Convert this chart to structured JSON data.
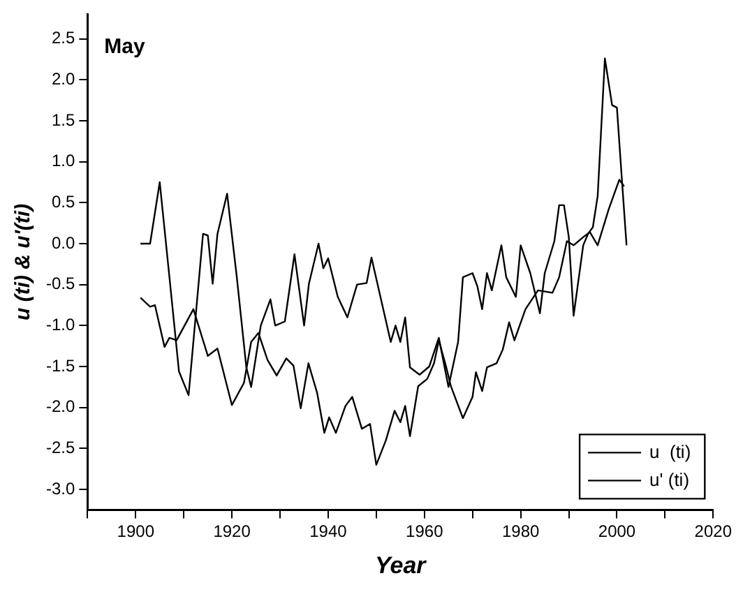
{
  "chart_data": {
    "type": "line",
    "title": "May",
    "xlabel": "Year",
    "ylabel": "u (ti) & u'(ti)",
    "xlim": [
      1890,
      2020
    ],
    "xticks": [
      {
        "value": 1890,
        "label": null
      },
      1900,
      {
        "value": 1910,
        "label": null
      },
      1920,
      {
        "value": 1930,
        "label": null
      },
      1940,
      {
        "value": 1950,
        "label": null
      },
      1960,
      {
        "value": 1970,
        "label": null
      },
      1980,
      {
        "value": 1990,
        "label": null
      },
      2000,
      {
        "value": 2010,
        "label": null
      },
      2020
    ],
    "ylim": [
      -3.25,
      2.8
    ],
    "yticks": [
      {
        "value": -3,
        "label": "-3.0"
      },
      {
        "value": -2.5,
        "label": "-2.5"
      },
      {
        "value": -2,
        "label": "-2.0"
      },
      {
        "value": -1.5,
        "label": "-1.5"
      },
      {
        "value": -1,
        "label": "-1.0"
      },
      {
        "value": -0.5,
        "label": "-0.5"
      },
      {
        "value": 0,
        "label": "0.0"
      },
      {
        "value": 0.5,
        "label": "0.5"
      },
      {
        "value": 1,
        "label": "1.0"
      },
      {
        "value": 1.5,
        "label": "1.5"
      },
      {
        "value": 2,
        "label": "2.0"
      },
      {
        "value": 2.5,
        "label": "2.5"
      }
    ],
    "grid": false,
    "legend": "bottom right",
    "marker": "none",
    "line_style": "solid",
    "series": [
      {
        "name": "u  (ti)",
        "color": "#000000",
        "x": [
          1901,
          1903,
          1905,
          1907,
          1909,
          1911,
          1914,
          1915,
          1916,
          1917,
          1919,
          1921,
          1923,
          1924,
          1926,
          1928,
          1929,
          1931,
          1933,
          1935,
          1936,
          1938,
          1939,
          1940,
          1942,
          1944,
          1946,
          1948,
          1949,
          1953,
          1954,
          1955,
          1956,
          1957,
          1959,
          1961,
          1963,
          1965,
          1967,
          1968,
          1970,
          1971,
          1972,
          1973,
          1974,
          1976,
          1977,
          1979,
          1980,
          1982,
          1984,
          1985,
          1987,
          1988,
          1989,
          1990,
          1991,
          1993,
          1994,
          1995,
          1996,
          1997.5,
          1999,
          2000,
          2001,
          2002
        ],
        "values": [
          0.0,
          0.0,
          0.75,
          -0.4,
          -1.56,
          -1.85,
          0.12,
          0.1,
          -0.49,
          0.12,
          0.61,
          -0.4,
          -1.51,
          -1.75,
          -1.0,
          -0.68,
          -1.0,
          -0.95,
          -0.13,
          -1.0,
          -0.49,
          0.0,
          -0.3,
          -0.18,
          -0.65,
          -0.9,
          -0.5,
          -0.48,
          -0.17,
          -1.2,
          -1.0,
          -1.2,
          -0.9,
          -1.51,
          -1.6,
          -1.5,
          -1.15,
          -1.75,
          -1.2,
          -0.41,
          -0.36,
          -0.52,
          -0.8,
          -0.36,
          -0.57,
          -0.02,
          -0.41,
          -0.65,
          -0.02,
          -0.36,
          -0.85,
          -0.36,
          0.03,
          0.47,
          0.47,
          0.08,
          -0.88,
          -0.02,
          0.12,
          0.2,
          0.58,
          2.26,
          1.69,
          1.66,
          0.81,
          -0.02
        ]
      },
      {
        "name": "u' (ti)",
        "color": "#000000",
        "x": [
          1901,
          1903,
          1904,
          1906,
          1907,
          1908.5,
          1912,
          1915,
          1917,
          1920,
          1922.5,
          1924,
          1925.5,
          1927.4,
          1929.3,
          1931.3,
          1932.8,
          1934.3,
          1935.9,
          1937.7,
          1939.2,
          1940.2,
          1941.6,
          1943.6,
          1945,
          1947,
          1948.7,
          1950,
          1952,
          1953.8,
          1955,
          1956,
          1957,
          1958.7,
          1960.6,
          1962,
          1963,
          1964.5,
          1965.5,
          1968,
          1970,
          1970.7,
          1972,
          1973,
          1975,
          1976.3,
          1977.6,
          1978.7,
          1981,
          1983.6,
          1986.6,
          1988,
          1989.6,
          1991,
          1993,
          1994.4,
          1996,
          1998.3,
          2000.5,
          2001.5
        ],
        "values": [
          -0.66,
          -0.77,
          -0.75,
          -1.26,
          -1.15,
          -1.18,
          -0.8,
          -1.37,
          -1.28,
          -1.97,
          -1.7,
          -1.2,
          -1.09,
          -1.42,
          -1.61,
          -1.4,
          -1.49,
          -2.01,
          -1.46,
          -1.82,
          -2.31,
          -2.12,
          -2.31,
          -1.98,
          -1.87,
          -2.26,
          -2.2,
          -2.7,
          -2.4,
          -2.04,
          -2.18,
          -1.98,
          -2.35,
          -1.74,
          -1.65,
          -1.46,
          -1.18,
          -1.5,
          -1.74,
          -2.13,
          -1.87,
          -1.57,
          -1.8,
          -1.51,
          -1.46,
          -1.29,
          -0.96,
          -1.18,
          -0.8,
          -0.57,
          -0.6,
          -0.41,
          0.03,
          -0.02,
          0.08,
          0.14,
          -0.02,
          0.42,
          0.78,
          0.7
        ]
      }
    ]
  }
}
